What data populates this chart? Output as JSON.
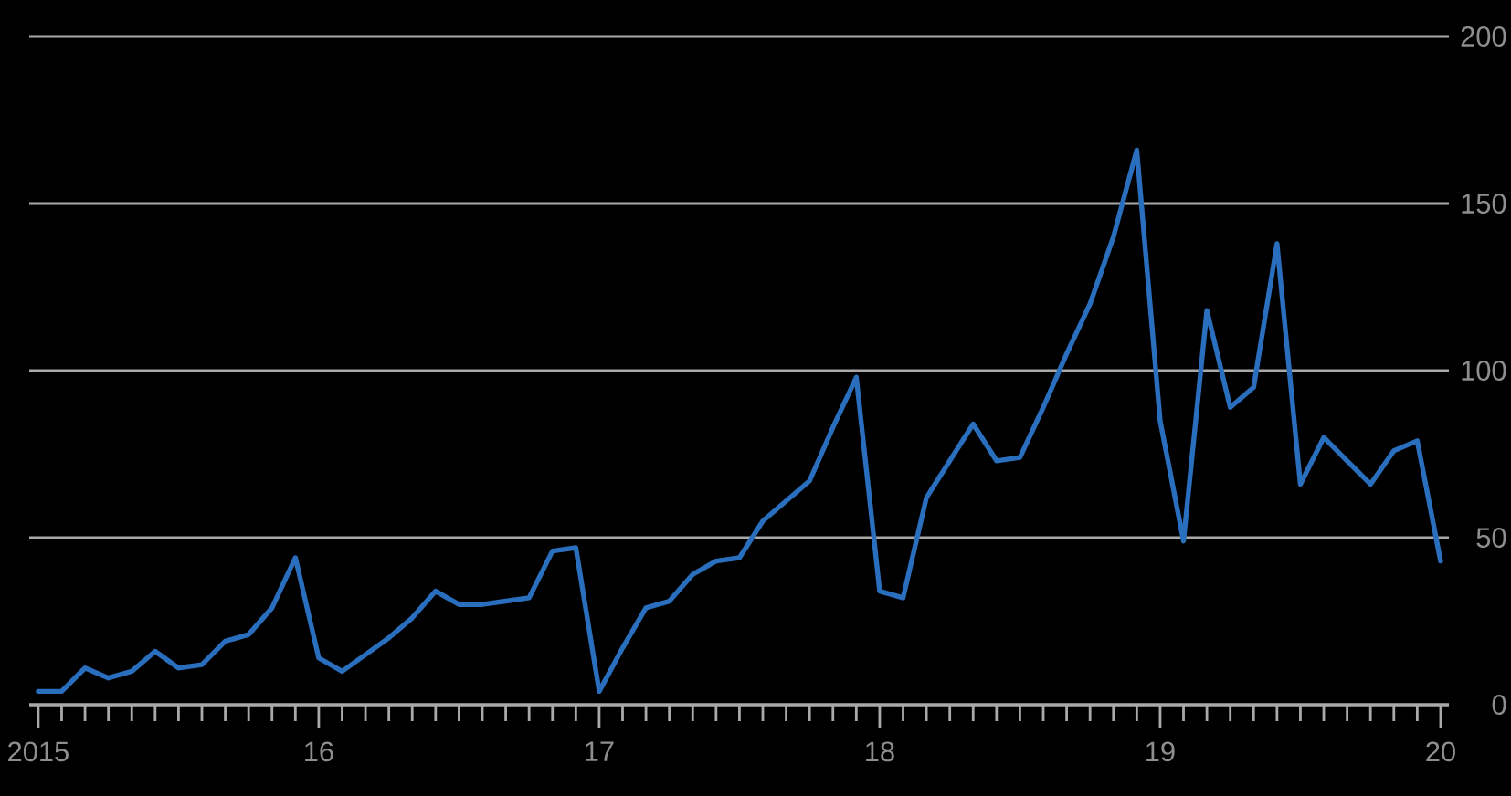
{
  "chart_data": {
    "type": "line",
    "x": [
      "2015-01",
      "2015-02",
      "2015-03",
      "2015-04",
      "2015-05",
      "2015-06",
      "2015-07",
      "2015-08",
      "2015-09",
      "2015-10",
      "2015-11",
      "2015-12",
      "2016-01",
      "2016-02",
      "2016-03",
      "2016-04",
      "2016-05",
      "2016-06",
      "2016-07",
      "2016-08",
      "2016-09",
      "2016-10",
      "2016-11",
      "2016-12",
      "2017-01",
      "2017-02",
      "2017-03",
      "2017-04",
      "2017-05",
      "2017-06",
      "2017-07",
      "2017-08",
      "2017-09",
      "2017-10",
      "2017-11",
      "2017-12",
      "2018-01",
      "2018-02",
      "2018-03",
      "2018-04",
      "2018-05",
      "2018-06",
      "2018-07",
      "2018-08",
      "2018-09",
      "2018-10",
      "2018-11",
      "2018-12",
      "2019-01",
      "2019-02",
      "2019-03",
      "2019-04",
      "2019-05",
      "2019-06",
      "2019-07",
      "2019-08",
      "2019-09",
      "2019-10",
      "2019-11",
      "2019-12",
      "2020-01"
    ],
    "series": [
      {
        "color": "#2a6ebe",
        "values": [
          4,
          4,
          11,
          8,
          10,
          16,
          11,
          12,
          19,
          21,
          29,
          44,
          14,
          10,
          15,
          20,
          26,
          34,
          30,
          30,
          31,
          32,
          46,
          47,
          4,
          17,
          29,
          31,
          39,
          43,
          44,
          55,
          61,
          67,
          83,
          98,
          34,
          32,
          62,
          73,
          84,
          73,
          74,
          89,
          105,
          120,
          140,
          166,
          85,
          49,
          118,
          89,
          95,
          138,
          66,
          80,
          73,
          66,
          76,
          79,
          43
        ]
      }
    ],
    "xlim": [
      "2014-12-20",
      "2020-01-12"
    ],
    "ylim": [
      0,
      200
    ],
    "yticks": [
      0,
      50,
      100,
      150,
      200
    ],
    "xticks": [
      {
        "value": "2015-01",
        "label": "2015"
      },
      {
        "value": "2015-02",
        "label": null
      },
      {
        "value": "2015-03",
        "label": null
      },
      {
        "value": "2015-04",
        "label": null
      },
      {
        "value": "2015-05",
        "label": null
      },
      {
        "value": "2015-06",
        "label": null
      },
      {
        "value": "2015-07",
        "label": null
      },
      {
        "value": "2015-08",
        "label": null
      },
      {
        "value": "2015-09",
        "label": null
      },
      {
        "value": "2015-10",
        "label": null
      },
      {
        "value": "2015-11",
        "label": null
      },
      {
        "value": "2015-12",
        "label": null
      },
      {
        "value": "2016-01",
        "label": "16"
      },
      {
        "value": "2016-02",
        "label": null
      },
      {
        "value": "2016-03",
        "label": null
      },
      {
        "value": "2016-04",
        "label": null
      },
      {
        "value": "2016-05",
        "label": null
      },
      {
        "value": "2016-06",
        "label": null
      },
      {
        "value": "2016-07",
        "label": null
      },
      {
        "value": "2016-08",
        "label": null
      },
      {
        "value": "2016-09",
        "label": null
      },
      {
        "value": "2016-10",
        "label": null
      },
      {
        "value": "2016-11",
        "label": null
      },
      {
        "value": "2016-12",
        "label": null
      },
      {
        "value": "2017-01",
        "label": "17"
      },
      {
        "value": "2017-02",
        "label": null
      },
      {
        "value": "2017-03",
        "label": null
      },
      {
        "value": "2017-04",
        "label": null
      },
      {
        "value": "2017-05",
        "label": null
      },
      {
        "value": "2017-06",
        "label": null
      },
      {
        "value": "2017-07",
        "label": null
      },
      {
        "value": "2017-08",
        "label": null
      },
      {
        "value": "2017-09",
        "label": null
      },
      {
        "value": "2017-10",
        "label": null
      },
      {
        "value": "2017-11",
        "label": null
      },
      {
        "value": "2017-12",
        "label": null
      },
      {
        "value": "2018-01",
        "label": "18"
      },
      {
        "value": "2018-02",
        "label": null
      },
      {
        "value": "2018-03",
        "label": null
      },
      {
        "value": "2018-04",
        "label": null
      },
      {
        "value": "2018-05",
        "label": null
      },
      {
        "value": "2018-06",
        "label": null
      },
      {
        "value": "2018-07",
        "label": null
      },
      {
        "value": "2018-08",
        "label": null
      },
      {
        "value": "2018-09",
        "label": null
      },
      {
        "value": "2018-10",
        "label": null
      },
      {
        "value": "2018-11",
        "label": null
      },
      {
        "value": "2018-12",
        "label": null
      },
      {
        "value": "2019-01",
        "label": "19"
      },
      {
        "value": "2019-02",
        "label": null
      },
      {
        "value": "2019-03",
        "label": null
      },
      {
        "value": "2019-04",
        "label": null
      },
      {
        "value": "2019-05",
        "label": null
      },
      {
        "value": "2019-06",
        "label": null
      },
      {
        "value": "2019-07",
        "label": null
      },
      {
        "value": "2019-08",
        "label": null
      },
      {
        "value": "2019-09",
        "label": null
      },
      {
        "value": "2019-10",
        "label": null
      },
      {
        "value": "2019-11",
        "label": null
      },
      {
        "value": "2019-12",
        "label": null
      },
      {
        "value": "2020-01",
        "label": "20"
      }
    ],
    "grid": "y"
  }
}
